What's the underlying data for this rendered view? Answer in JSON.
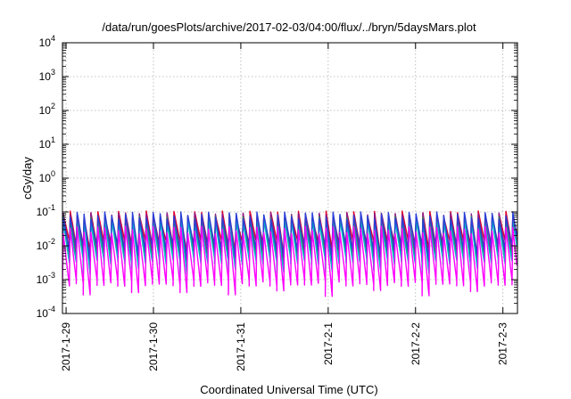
{
  "chart_data": {
    "type": "line",
    "title": "/data/run/goesPlots/archive/2017-02-03/04:00/flux/../bryn/5daysMars.plot",
    "xlabel": "Coordinated Universal Time (UTC)",
    "ylabel": "cGy/day",
    "yscale": "log",
    "ylim": [
      0.0001,
      10000
    ],
    "xlim": [
      "2017-01-28 23:00",
      "2017-02-03 04:00"
    ],
    "grid": true,
    "legend": "none",
    "y_tick_labels": [
      {
        "base": "10",
        "exp": "-4"
      },
      {
        "base": "10",
        "exp": "-3"
      },
      {
        "base": "10",
        "exp": "-2"
      },
      {
        "base": "10",
        "exp": "-1"
      },
      {
        "base": "10",
        "exp": "0"
      },
      {
        "base": "10",
        "exp": "1"
      },
      {
        "base": "10",
        "exp": "2"
      },
      {
        "base": "10",
        "exp": "3"
      },
      {
        "base": "10",
        "exp": "4"
      }
    ],
    "x_tick_labels": [
      "2017-1-29",
      "2017-1-30",
      "2017-1-31",
      "2017-2-1",
      "2017-2-2",
      "2017-2-3"
    ],
    "orbit_period_hours": 1.9,
    "series": [
      {
        "color": "#e0002a",
        "peak": 0.085,
        "trough": 0.012
      },
      {
        "color": "#8b1a8b",
        "peak": 0.075,
        "trough": 0.0065
      },
      {
        "color": "#2e8b57",
        "peak": 0.06,
        "trough": 0.0045
      },
      {
        "color": "#00b7c7",
        "peak": 0.05,
        "trough": 0.0035
      },
      {
        "color": "#2a3fd6",
        "peak": 0.08,
        "trough": 0.0085
      },
      {
        "color": "#ff00ff",
        "peak": 0.03,
        "trough": 0.0008
      }
    ]
  }
}
